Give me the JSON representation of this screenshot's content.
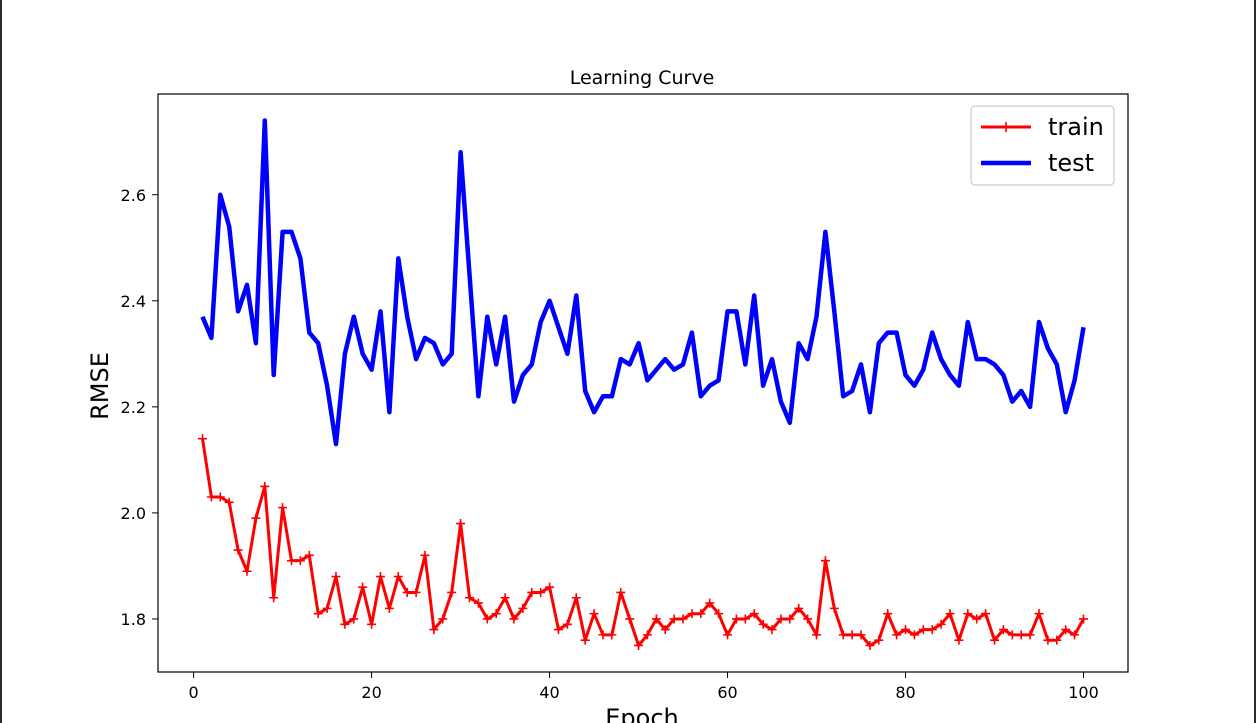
{
  "chart_data": {
    "type": "line",
    "title": "Learning Curve",
    "xlabel": "Epoch",
    "ylabel": "RMSE",
    "xlim": [
      -4,
      105
    ],
    "ylim": [
      1.7,
      2.79
    ],
    "xticks": [
      0,
      20,
      40,
      60,
      80,
      100
    ],
    "yticks": [
      1.8,
      2.0,
      2.2,
      2.4,
      2.6
    ],
    "xtick_labels": [
      "0",
      "20",
      "40",
      "60",
      "80",
      "100"
    ],
    "ytick_labels": [
      "1.8",
      "2.0",
      "2.2",
      "2.4",
      "2.6"
    ],
    "grid": false,
    "legend_position": "upper right",
    "x": [
      1,
      2,
      3,
      4,
      5,
      6,
      7,
      8,
      9,
      10,
      11,
      12,
      13,
      14,
      15,
      16,
      17,
      18,
      19,
      20,
      21,
      22,
      23,
      24,
      25,
      26,
      27,
      28,
      29,
      30,
      31,
      32,
      33,
      34,
      35,
      36,
      37,
      38,
      39,
      40,
      41,
      42,
      43,
      44,
      45,
      46,
      47,
      48,
      49,
      50,
      51,
      52,
      53,
      54,
      55,
      56,
      57,
      58,
      59,
      60,
      61,
      62,
      63,
      64,
      65,
      66,
      67,
      68,
      69,
      70,
      71,
      72,
      73,
      74,
      75,
      76,
      77,
      78,
      79,
      80,
      81,
      82,
      83,
      84,
      85,
      86,
      87,
      88,
      89,
      90,
      91,
      92,
      93,
      94,
      95,
      96,
      97,
      98,
      99,
      100
    ],
    "series": [
      {
        "name": "train",
        "color": "#ff0000",
        "marker": "+",
        "values": [
          2.14,
          2.03,
          2.03,
          2.02,
          1.93,
          1.89,
          1.99,
          2.05,
          1.84,
          2.01,
          1.91,
          1.91,
          1.92,
          1.81,
          1.82,
          1.88,
          1.79,
          1.8,
          1.86,
          1.79,
          1.88,
          1.82,
          1.88,
          1.85,
          1.85,
          1.92,
          1.78,
          1.8,
          1.85,
          1.98,
          1.84,
          1.83,
          1.8,
          1.81,
          1.84,
          1.8,
          1.82,
          1.85,
          1.85,
          1.86,
          1.78,
          1.79,
          1.84,
          1.76,
          1.81,
          1.77,
          1.77,
          1.85,
          1.8,
          1.75,
          1.77,
          1.8,
          1.78,
          1.8,
          1.8,
          1.81,
          1.81,
          1.83,
          1.81,
          1.77,
          1.8,
          1.8,
          1.81,
          1.79,
          1.78,
          1.8,
          1.8,
          1.82,
          1.8,
          1.77,
          1.91,
          1.82,
          1.77,
          1.77,
          1.77,
          1.75,
          1.76,
          1.81,
          1.77,
          1.78,
          1.77,
          1.78,
          1.78,
          1.79,
          1.81,
          1.76,
          1.81,
          1.8,
          1.81,
          1.76,
          1.78,
          1.77,
          1.77,
          1.77,
          1.81,
          1.76,
          1.76,
          1.78,
          1.77,
          1.8
        ]
      },
      {
        "name": "test",
        "color": "#0000ff",
        "marker": "",
        "values": [
          2.37,
          2.33,
          2.6,
          2.54,
          2.38,
          2.43,
          2.32,
          2.74,
          2.26,
          2.53,
          2.53,
          2.48,
          2.34,
          2.32,
          2.24,
          2.13,
          2.3,
          2.37,
          2.3,
          2.27,
          2.38,
          2.19,
          2.48,
          2.37,
          2.29,
          2.33,
          2.32,
          2.28,
          2.3,
          2.68,
          2.45,
          2.22,
          2.37,
          2.28,
          2.37,
          2.21,
          2.26,
          2.28,
          2.36,
          2.4,
          2.35,
          2.3,
          2.41,
          2.23,
          2.19,
          2.22,
          2.22,
          2.29,
          2.28,
          2.32,
          2.25,
          2.27,
          2.29,
          2.27,
          2.28,
          2.34,
          2.22,
          2.24,
          2.25,
          2.38,
          2.38,
          2.28,
          2.41,
          2.24,
          2.29,
          2.21,
          2.17,
          2.32,
          2.29,
          2.37,
          2.53,
          2.38,
          2.22,
          2.23,
          2.28,
          2.19,
          2.32,
          2.34,
          2.34,
          2.26,
          2.24,
          2.27,
          2.34,
          2.29,
          2.26,
          2.24,
          2.36,
          2.29,
          2.29,
          2.28,
          2.26,
          2.21,
          2.23,
          2.2,
          2.36,
          2.31,
          2.28,
          2.19,
          2.25,
          2.35
        ]
      }
    ]
  }
}
